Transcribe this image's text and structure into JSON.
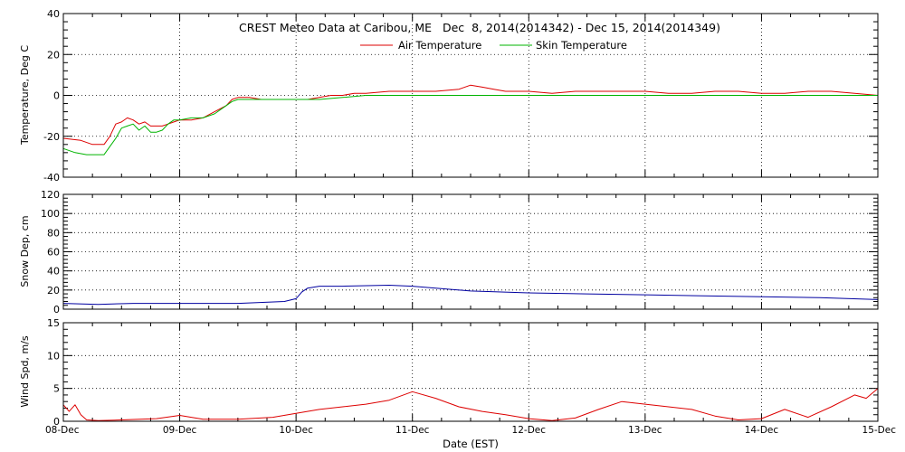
{
  "title": "CREST Meteo Data at Caribou, ME   Dec  8, 2014(2014342) - Dec 15, 2014(2014349)",
  "xlabel": "Date (EST)",
  "colors": {
    "air": "#dd0000",
    "skin": "#00b400",
    "snow": "#0000a0",
    "wind": "#dd0000",
    "text": "#000000"
  },
  "chart_data": [
    {
      "type": "line",
      "title": "CREST Meteo Data at Caribou, ME   Dec  8, 2014(2014342) - Dec 15, 2014(2014349)",
      "ylabel": "Temperature, Deg C",
      "ylim": [
        -40,
        40
      ],
      "yticks": [
        -40,
        -20,
        0,
        20,
        40
      ],
      "xlim": [
        0,
        7
      ],
      "x_ticklabels": [
        "08-Dec",
        "09-Dec",
        "10-Dec",
        "11-Dec",
        "12-Dec",
        "13-Dec",
        "14-Dec",
        "15-Dec"
      ],
      "grid": true,
      "legend": "top-center",
      "series": [
        {
          "name": "Air Temperature",
          "color": "#dd0000",
          "x": [
            0,
            0.15,
            0.25,
            0.35,
            0.4,
            0.45,
            0.5,
            0.55,
            0.6,
            0.65,
            0.7,
            0.75,
            0.8,
            0.85,
            0.9,
            0.95,
            1.0,
            1.1,
            1.2,
            1.3,
            1.4,
            1.45,
            1.5,
            1.6,
            1.7,
            1.8,
            1.9,
            2.0,
            2.1,
            2.2,
            2.3,
            2.4,
            2.5,
            2.6,
            2.8,
            3.0,
            3.2,
            3.4,
            3.5,
            3.6,
            3.7,
            3.8,
            3.9,
            4.0,
            4.2,
            4.4,
            4.6,
            4.8,
            5.0,
            5.2,
            5.4,
            5.6,
            5.8,
            6.0,
            6.2,
            6.4,
            6.6,
            6.8,
            7.0
          ],
          "y": [
            -21,
            -22,
            -24,
            -24,
            -20,
            -14,
            -13,
            -11,
            -12,
            -14,
            -13,
            -15,
            -15,
            -15,
            -14,
            -13,
            -12,
            -12,
            -11,
            -8,
            -5,
            -2,
            -1,
            -1,
            -2,
            -2,
            -2,
            -2,
            -2,
            -1,
            0,
            0,
            1,
            1,
            2,
            2,
            2,
            3,
            5,
            4,
            3,
            2,
            2,
            2,
            1,
            2,
            2,
            2,
            2,
            1,
            1,
            2,
            2,
            1,
            1,
            2,
            2,
            1,
            0
          ]
        },
        {
          "name": "Skin Temperature",
          "color": "#00b400",
          "x": [
            0,
            0.1,
            0.2,
            0.3,
            0.35,
            0.4,
            0.45,
            0.5,
            0.55,
            0.6,
            0.65,
            0.7,
            0.75,
            0.8,
            0.85,
            0.9,
            0.95,
            1.0,
            1.1,
            1.2,
            1.3,
            1.4,
            1.45,
            1.5,
            1.6,
            1.8,
            2.0,
            2.2,
            2.4,
            2.6,
            2.8,
            3.0,
            4.0,
            5.0,
            6.0,
            7.0
          ],
          "y": [
            -26,
            -28,
            -29,
            -29,
            -29,
            -25,
            -21,
            -16,
            -15,
            -14,
            -17,
            -15,
            -18,
            -18,
            -17,
            -14,
            -12,
            -12,
            -11,
            -11,
            -9,
            -5,
            -3,
            -2,
            -2,
            -2,
            -2,
            -2,
            -1,
            0,
            0,
            0,
            0,
            0,
            0,
            0
          ]
        }
      ]
    },
    {
      "type": "line",
      "ylabel": "Snow Dep, cm",
      "ylim": [
        0,
        120
      ],
      "yticks": [
        0,
        20,
        40,
        60,
        80,
        100,
        120
      ],
      "xlim": [
        0,
        7
      ],
      "x_ticklabels": [
        "08-Dec",
        "09-Dec",
        "10-Dec",
        "11-Dec",
        "12-Dec",
        "13-Dec",
        "14-Dec",
        "15-Dec"
      ],
      "grid": true,
      "series": [
        {
          "color": "#0000a0",
          "x": [
            0,
            0.3,
            0.6,
            1.0,
            1.5,
            1.9,
            2.0,
            2.05,
            2.1,
            2.2,
            2.4,
            2.8,
            3.0,
            3.2,
            3.5,
            4.0,
            4.5,
            5.0,
            5.5,
            6.0,
            6.5,
            7.0
          ],
          "y": [
            6,
            5,
            6,
            6,
            6,
            8,
            11,
            18,
            22,
            24,
            24,
            25,
            24,
            22,
            19,
            17,
            16,
            15,
            14,
            13,
            12,
            10
          ]
        }
      ]
    },
    {
      "type": "line",
      "ylabel": "Wind Spd, m/s",
      "ylim": [
        0,
        15
      ],
      "yticks": [
        0,
        5,
        10,
        15
      ],
      "xlim": [
        0,
        7
      ],
      "x_ticklabels": [
        "08-Dec",
        "09-Dec",
        "10-Dec",
        "11-Dec",
        "12-Dec",
        "13-Dec",
        "14-Dec",
        "15-Dec"
      ],
      "xlabel": "Date (EST)",
      "grid": true,
      "series": [
        {
          "color": "#dd0000",
          "x": [
            0,
            0.05,
            0.1,
            0.15,
            0.2,
            0.3,
            0.5,
            0.8,
            1.0,
            1.2,
            1.5,
            1.8,
            2.0,
            2.2,
            2.4,
            2.6,
            2.8,
            3.0,
            3.2,
            3.4,
            3.6,
            3.8,
            4.0,
            4.2,
            4.4,
            4.6,
            4.8,
            5.0,
            5.2,
            5.4,
            5.6,
            5.8,
            6.0,
            6.2,
            6.4,
            6.6,
            6.8,
            6.9,
            7.0
          ],
          "y": [
            2.5,
            1.5,
            2.5,
            1.0,
            0.2,
            0.1,
            0.2,
            0.4,
            0.9,
            0.3,
            0.3,
            0.6,
            1.2,
            1.8,
            2.2,
            2.6,
            3.2,
            4.5,
            3.5,
            2.2,
            1.5,
            1.0,
            0.4,
            0.1,
            0.5,
            1.8,
            3.0,
            2.6,
            2.2,
            1.8,
            0.8,
            0.2,
            0.4,
            1.8,
            0.6,
            2.2,
            4.0,
            3.5,
            5.0
          ]
        }
      ]
    }
  ]
}
